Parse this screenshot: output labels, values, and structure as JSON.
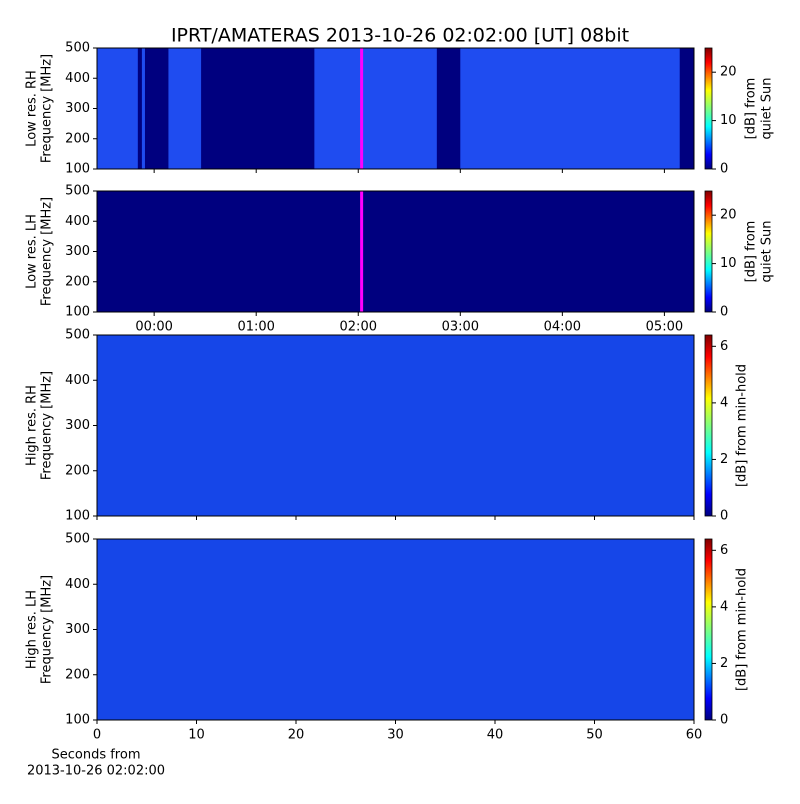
{
  "chart_data": [
    {
      "type": "spectrogram",
      "title": "IPRT/AMATERAS 2013-10-26 02:02:00 [UT]   08bit",
      "ylabel": [
        "Low res. RH",
        "Frequency [MHz]"
      ],
      "xlim": [
        -0.56,
        5.29
      ],
      "xticks": [
        0,
        1,
        2,
        3,
        4,
        5
      ],
      "ylim": [
        100,
        500
      ],
      "yticks": [
        100,
        200,
        300,
        400,
        500
      ],
      "segments": [
        [
          -0.56,
          -0.16
        ],
        [
          -0.12,
          -0.09
        ],
        [
          0.14,
          0.46
        ],
        [
          1.57,
          2.77
        ],
        [
          3.0,
          5.15
        ]
      ],
      "background_color": "#00007f",
      "color": "#1f4cf0",
      "marker_x": 2.033,
      "marker_color": "#ff00ff",
      "clim": [
        0,
        25
      ],
      "cticks": [
        0,
        10,
        20
      ],
      "clabel": [
        "[dB] from",
        "quiet Sun"
      ]
    },
    {
      "type": "spectrogram",
      "ylabel": [
        "Low res. LH",
        "Frequency [MHz]"
      ],
      "xlim": [
        -0.56,
        5.29
      ],
      "xticks": [
        {
          "value": 0,
          "label": "00:00"
        },
        {
          "value": 1,
          "label": "01:00"
        },
        {
          "value": 2,
          "label": "02:00"
        },
        {
          "value": 3,
          "label": "03:00"
        },
        {
          "value": 4,
          "label": "04:00"
        },
        {
          "value": 5,
          "label": "05:00"
        }
      ],
      "ylim": [
        100,
        500
      ],
      "yticks": [
        100,
        200,
        300,
        400,
        500
      ],
      "background_color": "#00007f",
      "marker_x": 2.033,
      "marker_color": "#ff00ff",
      "clim": [
        0,
        25
      ],
      "cticks": [
        0,
        10,
        20
      ],
      "clabel": [
        "[dB] from",
        "quiet Sun"
      ]
    },
    {
      "type": "spectrogram",
      "ylabel": [
        "High res. RH",
        "Frequency [MHz]"
      ],
      "xlim": [
        0,
        60
      ],
      "xticks": [
        0,
        10,
        20,
        30,
        40,
        50,
        60
      ],
      "ylim": [
        100,
        500
      ],
      "yticks": [
        100,
        200,
        300,
        400,
        500
      ],
      "background_color": "#1646e8",
      "clim": [
        0,
        6.4
      ],
      "cticks": [
        0,
        2,
        4,
        6
      ],
      "clabel": [
        "[dB] from min-hold"
      ]
    },
    {
      "type": "spectrogram",
      "ylabel": [
        "High res. LH",
        "Frequency [MHz]"
      ],
      "xlabel": [
        "Seconds from",
        "2013-10-26 02:02:00"
      ],
      "xlim": [
        0,
        60
      ],
      "xticks": [
        0,
        10,
        20,
        30,
        40,
        50,
        60
      ],
      "xtick_labels": true,
      "ylim": [
        100,
        500
      ],
      "yticks": [
        100,
        200,
        300,
        400,
        500
      ],
      "background_color": "#1646e8",
      "clim": [
        0,
        6.4
      ],
      "cticks": [
        0,
        2,
        4,
        6
      ],
      "clabel": [
        "[dB] from min-hold"
      ]
    }
  ]
}
